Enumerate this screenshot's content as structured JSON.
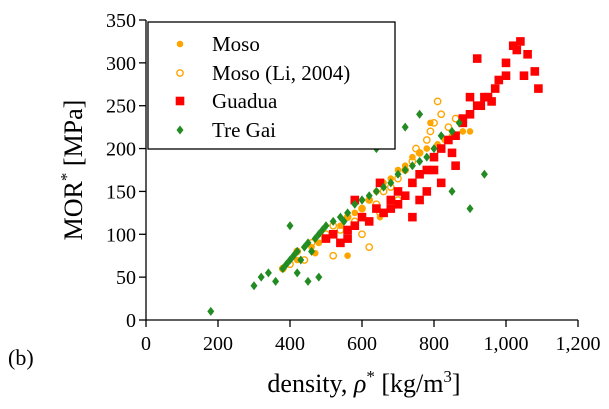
{
  "chart_data": {
    "type": "scatter",
    "panel_label": "(b)",
    "xlabel": "density, ρ* [kg/m³]",
    "xlabel_parts": {
      "main": "density, ",
      "rho": "ρ",
      "star": "*",
      "unit_open": " [kg/m",
      "cubed": "3",
      "unit_close": "]"
    },
    "ylabel": "MOR* [MPa]",
    "ylabel_parts": {
      "main": "MOR",
      "star": "*",
      "unit": " [MPa]"
    },
    "xlim": [
      0,
      1200
    ],
    "ylim": [
      0,
      350
    ],
    "x_ticks": [
      0,
      200,
      400,
      600,
      800,
      1000,
      1200
    ],
    "x_tick_labels": [
      "0",
      "200",
      "400",
      "600",
      "800",
      "1,000",
      "1,200"
    ],
    "y_ticks": [
      0,
      50,
      100,
      150,
      200,
      250,
      300,
      350
    ],
    "y_tick_labels": [
      "0",
      "50",
      "100",
      "150",
      "200",
      "250",
      "300",
      "350"
    ],
    "grid": false,
    "legend_position": "top-left",
    "series": [
      {
        "name": "Moso",
        "marker": "filled-circle",
        "color": "#FFA500",
        "x": [
          420,
          460,
          480,
          500,
          520,
          540,
          560,
          580,
          600,
          620,
          640,
          660,
          680,
          700,
          720,
          740,
          760,
          780,
          790,
          810,
          830,
          850,
          880,
          900,
          470,
          560,
          650,
          720
        ],
        "y": [
          70,
          85,
          90,
          95,
          100,
          110,
          120,
          125,
          130,
          140,
          150,
          160,
          165,
          175,
          180,
          190,
          195,
          200,
          230,
          205,
          210,
          215,
          220,
          220,
          78,
          75,
          120,
          145
        ]
      },
      {
        "name": "Moso (Li, 2004)",
        "marker": "open-circle",
        "color": "#FFA500",
        "x": [
          380,
          400,
          420,
          440,
          460,
          480,
          500,
          520,
          540,
          560,
          580,
          600,
          620,
          640,
          660,
          680,
          700,
          720,
          740,
          760,
          780,
          790,
          800,
          820,
          840,
          860,
          520,
          600,
          650,
          700,
          750,
          810,
          620
        ],
        "y": [
          60,
          65,
          80,
          70,
          90,
          95,
          100,
          110,
          105,
          120,
          115,
          130,
          140,
          135,
          150,
          155,
          165,
          175,
          185,
          195,
          210,
          220,
          230,
          240,
          225,
          235,
          75,
          100,
          125,
          140,
          200,
          255,
          85
        ]
      },
      {
        "name": "Guadua",
        "marker": "filled-square",
        "color": "#FF0000",
        "x": [
          500,
          520,
          540,
          560,
          580,
          600,
          620,
          640,
          660,
          680,
          700,
          720,
          740,
          760,
          780,
          800,
          820,
          840,
          860,
          880,
          900,
          920,
          940,
          960,
          980,
          1000,
          1020,
          1040,
          1060,
          1080,
          920,
          950,
          970,
          1000,
          1030,
          1050,
          1090,
          880,
          860,
          820,
          780,
          760,
          700,
          680,
          650,
          580,
          560,
          740,
          800,
          850,
          900,
          930
        ],
        "y": [
          95,
          100,
          90,
          105,
          110,
          120,
          115,
          130,
          125,
          140,
          150,
          145,
          160,
          170,
          175,
          190,
          200,
          210,
          215,
          230,
          240,
          250,
          260,
          255,
          280,
          300,
          320,
          325,
          310,
          290,
          305,
          260,
          270,
          285,
          315,
          285,
          270,
          235,
          180,
          160,
          150,
          140,
          135,
          130,
          160,
          140,
          95,
          120,
          175,
          195,
          260,
          250
        ]
      },
      {
        "name": "Tre Gai",
        "marker": "filled-diamond",
        "color": "#228B22",
        "x": [
          180,
          300,
          320,
          340,
          360,
          380,
          390,
          400,
          410,
          420,
          430,
          440,
          450,
          460,
          470,
          480,
          490,
          500,
          520,
          540,
          560,
          580,
          600,
          620,
          640,
          660,
          680,
          700,
          720,
          740,
          760,
          780,
          800,
          820,
          850,
          870,
          940,
          760,
          720,
          640,
          600,
          550,
          480,
          450,
          420,
          400,
          900,
          850
        ],
        "y": [
          10,
          40,
          50,
          55,
          45,
          60,
          65,
          70,
          75,
          80,
          70,
          85,
          90,
          80,
          95,
          100,
          105,
          110,
          115,
          120,
          125,
          135,
          140,
          145,
          150,
          155,
          160,
          170,
          175,
          180,
          185,
          190,
          200,
          215,
          220,
          230,
          170,
          240,
          225,
          200,
          140,
          115,
          50,
          45,
          55,
          110,
          130,
          150
        ]
      }
    ]
  }
}
